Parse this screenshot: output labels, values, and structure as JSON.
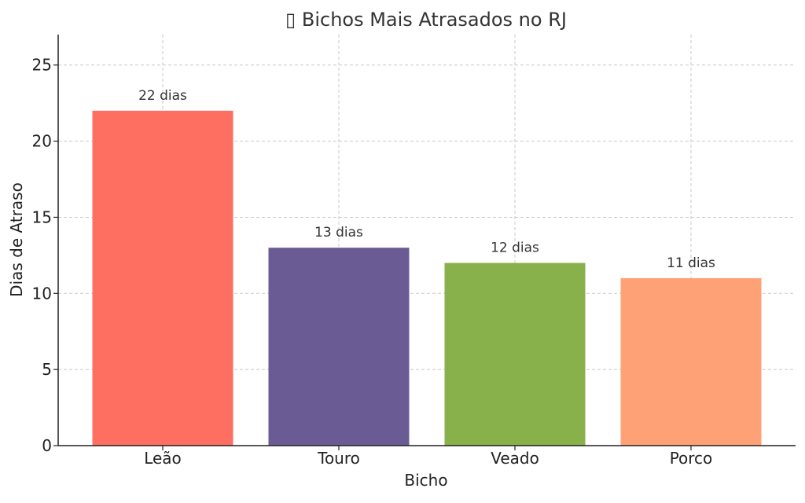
{
  "chart_data": {
    "type": "bar",
    "title": "▯ Bichos Mais Atrasados no RJ",
    "xlabel": "Bicho",
    "ylabel": "Dias de Atraso",
    "categories": [
      "Leão",
      "Touro",
      "Veado",
      "Porco"
    ],
    "values": [
      22,
      13,
      12,
      11
    ],
    "data_labels": [
      "22 dias",
      "13 dias",
      "12 dias",
      "11 dias"
    ],
    "colors": [
      "#FF6F61",
      "#6B5B95",
      "#88B04B",
      "#FFA177"
    ],
    "ylim": [
      0,
      27
    ],
    "yticks": [
      0,
      5,
      10,
      15,
      20,
      25
    ],
    "grid": true,
    "legend": "none"
  }
}
